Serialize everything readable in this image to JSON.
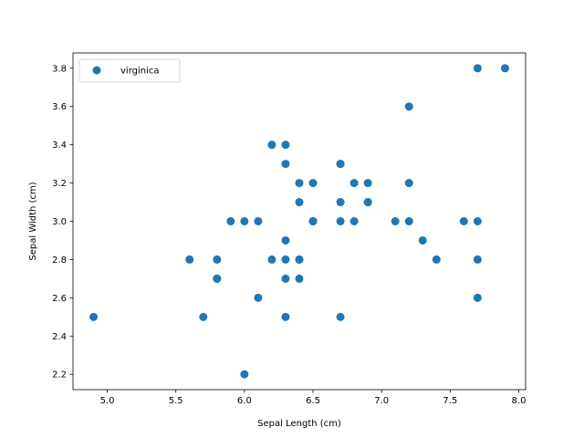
{
  "chart_data": {
    "type": "scatter",
    "title": "",
    "xlabel": "Sepal Length (cm)",
    "ylabel": "Sepal Width (cm)",
    "xlim": [
      4.75,
      8.05
    ],
    "ylim": [
      2.12,
      3.88
    ],
    "xticks": [
      5.0,
      5.5,
      6.0,
      6.5,
      7.0,
      7.5,
      8.0
    ],
    "xtick_labels": [
      "5.0",
      "5.5",
      "6.0",
      "6.5",
      "7.0",
      "7.5",
      "8.0"
    ],
    "yticks": [
      2.2,
      2.4,
      2.6,
      2.8,
      3.0,
      3.2,
      3.4,
      3.6,
      3.8
    ],
    "ytick_labels": [
      "2.2",
      "2.4",
      "2.6",
      "2.8",
      "3.0",
      "3.2",
      "3.4",
      "3.6",
      "3.8"
    ],
    "grid": false,
    "legend_position": "top-left",
    "series": [
      {
        "name": "virginica",
        "color": "#1f77b4",
        "points": [
          {
            "x": 6.3,
            "y": 3.3
          },
          {
            "x": 5.8,
            "y": 2.7
          },
          {
            "x": 7.1,
            "y": 3.0
          },
          {
            "x": 6.3,
            "y": 2.9
          },
          {
            "x": 6.5,
            "y": 3.0
          },
          {
            "x": 7.6,
            "y": 3.0
          },
          {
            "x": 4.9,
            "y": 2.5
          },
          {
            "x": 7.3,
            "y": 2.9
          },
          {
            "x": 6.7,
            "y": 2.5
          },
          {
            "x": 7.2,
            "y": 3.6
          },
          {
            "x": 6.5,
            "y": 3.2
          },
          {
            "x": 6.4,
            "y": 2.7
          },
          {
            "x": 6.8,
            "y": 3.0
          },
          {
            "x": 5.7,
            "y": 2.5
          },
          {
            "x": 5.8,
            "y": 2.8
          },
          {
            "x": 6.4,
            "y": 3.2
          },
          {
            "x": 6.5,
            "y": 3.0
          },
          {
            "x": 7.7,
            "y": 3.8
          },
          {
            "x": 7.7,
            "y": 2.6
          },
          {
            "x": 6.0,
            "y": 2.2
          },
          {
            "x": 6.9,
            "y": 3.2
          },
          {
            "x": 5.6,
            "y": 2.8
          },
          {
            "x": 7.7,
            "y": 2.8
          },
          {
            "x": 6.3,
            "y": 2.7
          },
          {
            "x": 6.7,
            "y": 3.3
          },
          {
            "x": 7.2,
            "y": 3.2
          },
          {
            "x": 6.2,
            "y": 2.8
          },
          {
            "x": 6.1,
            "y": 3.0
          },
          {
            "x": 6.4,
            "y": 2.8
          },
          {
            "x": 7.2,
            "y": 3.0
          },
          {
            "x": 7.4,
            "y": 2.8
          },
          {
            "x": 7.9,
            "y": 3.8
          },
          {
            "x": 6.4,
            "y": 2.8
          },
          {
            "x": 6.3,
            "y": 2.8
          },
          {
            "x": 6.1,
            "y": 2.6
          },
          {
            "x": 7.7,
            "y": 3.0
          },
          {
            "x": 6.3,
            "y": 3.4
          },
          {
            "x": 6.4,
            "y": 3.1
          },
          {
            "x": 6.0,
            "y": 3.0
          },
          {
            "x": 6.9,
            "y": 3.1
          },
          {
            "x": 6.7,
            "y": 3.1
          },
          {
            "x": 6.9,
            "y": 3.1
          },
          {
            "x": 5.8,
            "y": 2.7
          },
          {
            "x": 6.8,
            "y": 3.2
          },
          {
            "x": 6.7,
            "y": 3.3
          },
          {
            "x": 6.7,
            "y": 3.0
          },
          {
            "x": 6.3,
            "y": 2.5
          },
          {
            "x": 6.5,
            "y": 3.0
          },
          {
            "x": 6.2,
            "y": 3.4
          },
          {
            "x": 5.9,
            "y": 3.0
          }
        ]
      }
    ]
  }
}
